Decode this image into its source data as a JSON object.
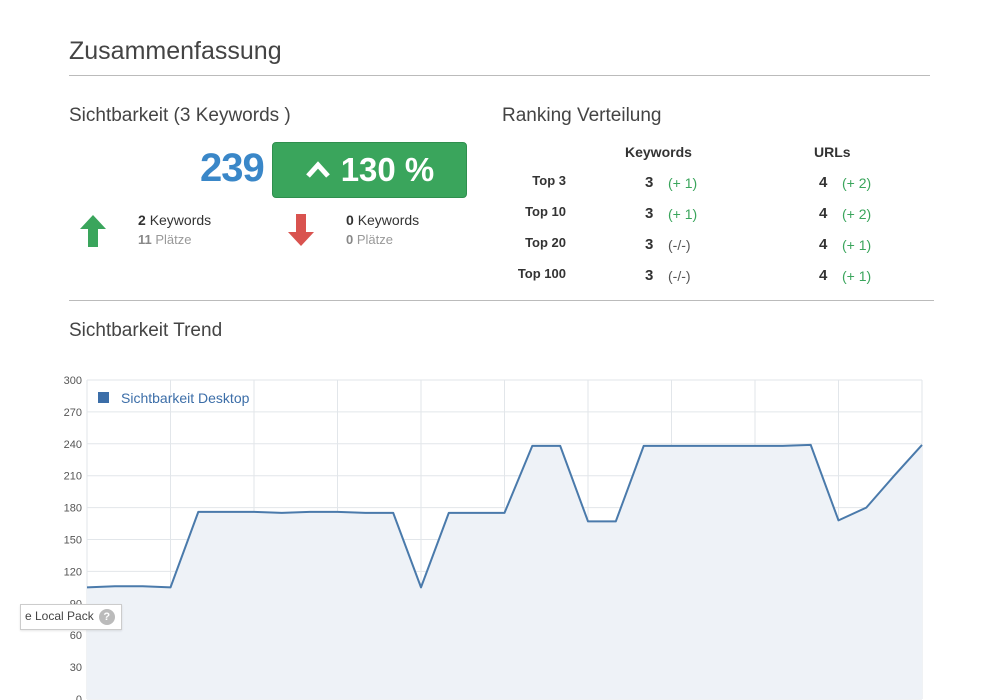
{
  "page": {
    "title": "Zusammenfassung"
  },
  "visibility": {
    "title": "Sichtbarkeit (3 Keywords )",
    "score": "239",
    "change": "130 %",
    "up": {
      "keywords_count": "2",
      "keywords_label": "Keywords",
      "places_count": "11",
      "places_label": "Plätze"
    },
    "down": {
      "keywords_count": "0",
      "keywords_label": "Keywords",
      "places_count": "0",
      "places_label": "Plätze"
    }
  },
  "ranking": {
    "title": "Ranking Verteilung",
    "col_keywords": "Keywords",
    "col_urls": "URLs",
    "rows": [
      {
        "label": "Top 3",
        "kw": "3",
        "kw_delta": "(+ 1)",
        "url": "4",
        "url_delta": "(+ 2)"
      },
      {
        "label": "Top 10",
        "kw": "3",
        "kw_delta": "(+ 1)",
        "url": "4",
        "url_delta": "(+ 2)"
      },
      {
        "label": "Top 20",
        "kw": "3",
        "kw_delta": "(-/-)",
        "url": "4",
        "url_delta": "(+ 1)"
      },
      {
        "label": "Top 100",
        "kw": "3",
        "kw_delta": "(-/-)",
        "url": "4",
        "url_delta": "(+ 1)"
      }
    ]
  },
  "trend": {
    "title": "Sichtbarkeit Trend",
    "tooltip_label": "e Local Pack",
    "tooltip_icon": "?"
  },
  "colors": {
    "accent_blue": "#3a87c8",
    "green": "#3aa55c",
    "red": "#d9534f",
    "line": "#4a7aab"
  },
  "chart_data": {
    "type": "area",
    "ylim": [
      0,
      300
    ],
    "y_ticks": [
      0,
      30,
      60,
      90,
      120,
      150,
      180,
      210,
      240,
      270,
      300
    ],
    "series": [
      {
        "name": "Sichtbarkeit Desktop",
        "values": [
          105,
          106,
          106,
          105,
          176,
          176,
          176,
          175,
          176,
          176,
          175,
          175,
          105,
          175,
          175,
          175,
          238,
          238,
          167,
          167,
          238,
          238,
          238,
          238,
          238,
          238,
          239,
          168,
          180,
          210,
          239
        ]
      }
    ],
    "legend_position": "top-left",
    "grid": true
  }
}
